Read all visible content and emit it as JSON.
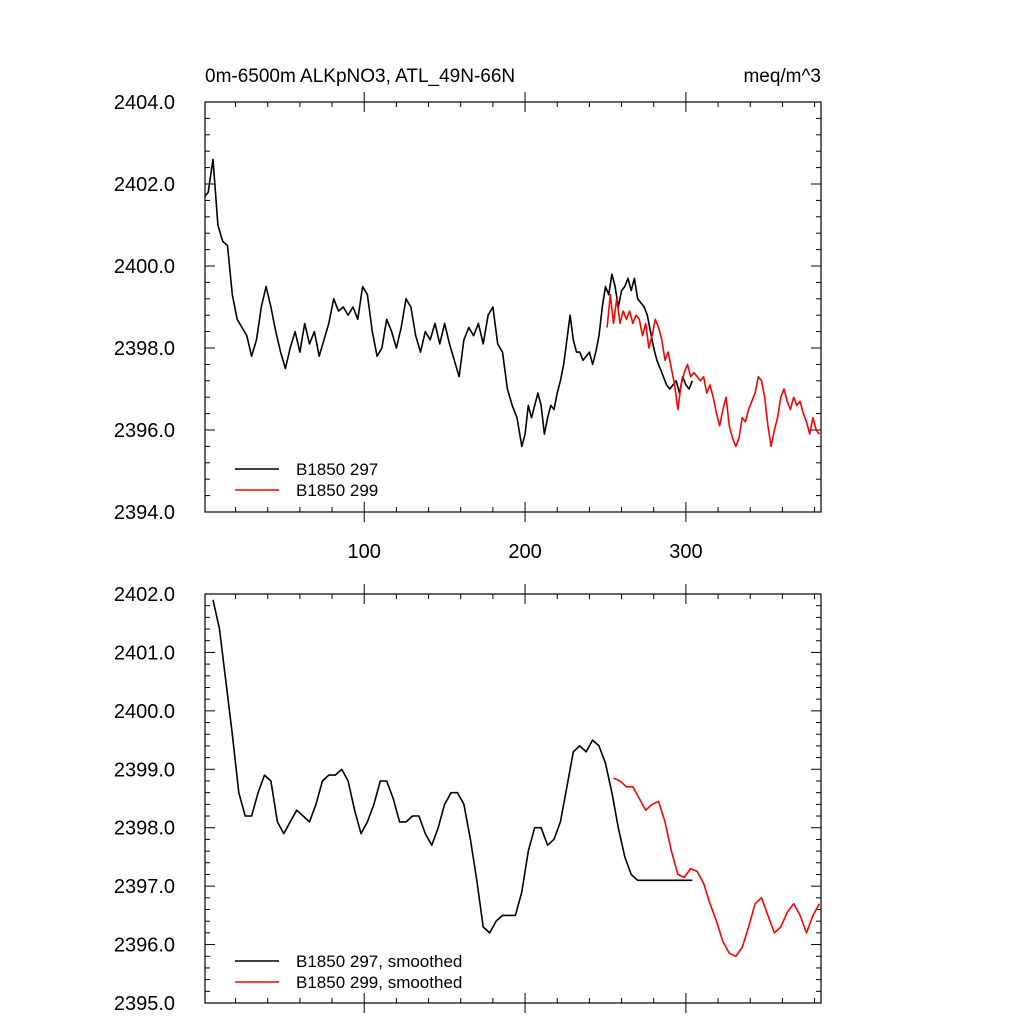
{
  "figure": {
    "title_left": "0m-6500m ALKpNO3, ATL_49N-66N",
    "title_right": "meq/m^3"
  },
  "colors": {
    "series_297": "#000000",
    "series_299": "#ff0000"
  },
  "chart_data": [
    {
      "type": "line",
      "title": "0m-6500m ALKpNO3, ATL_49N-66N",
      "unit": "meq/m^3",
      "xlim": [
        1,
        384
      ],
      "ylim": [
        2394,
        2404
      ],
      "xticks": [
        100,
        200,
        300
      ],
      "yticks": [
        2394,
        2396,
        2398,
        2400,
        2402,
        2404
      ],
      "ytick_labels": [
        "2394.0",
        "2396.0",
        "2398.0",
        "2400.0",
        "2402.0",
        "2404.0"
      ],
      "grid": false,
      "legend": "bottom-left",
      "series": [
        {
          "name": "B1850 297",
          "x": [
            1,
            3,
            6,
            9,
            12,
            15,
            18,
            21,
            24,
            27,
            30,
            33,
            36,
            39,
            42,
            45,
            48,
            51,
            54,
            57,
            60,
            63,
            66,
            69,
            72,
            75,
            78,
            81,
            84,
            87,
            90,
            93,
            96,
            99,
            102,
            105,
            108,
            111,
            114,
            117,
            120,
            123,
            126,
            129,
            132,
            135,
            138,
            141,
            144,
            147,
            150,
            153,
            156,
            159,
            162,
            165,
            168,
            171,
            174,
            177,
            180,
            183,
            186,
            189,
            192,
            195,
            198,
            200,
            202,
            204,
            206,
            208,
            210,
            212,
            214,
            216,
            218,
            220,
            222,
            224,
            226,
            228,
            230,
            232,
            234,
            236,
            238,
            240,
            242,
            244,
            246,
            248,
            250,
            252,
            254,
            256,
            258,
            260,
            262,
            264,
            266,
            268,
            270,
            272,
            274,
            276,
            278,
            280,
            282,
            284,
            286,
            288,
            290,
            292,
            294,
            296,
            298,
            300,
            302,
            304
          ],
          "y": [
            2401.7,
            2401.8,
            2402.6,
            2401.0,
            2400.6,
            2400.5,
            2399.3,
            2398.7,
            2398.5,
            2398.3,
            2397.8,
            2398.2,
            2399.0,
            2399.5,
            2399.0,
            2398.4,
            2397.9,
            2397.5,
            2398.0,
            2398.4,
            2397.9,
            2398.6,
            2398.1,
            2398.4,
            2397.8,
            2398.2,
            2398.6,
            2399.2,
            2398.9,
            2399.0,
            2398.8,
            2399.0,
            2398.7,
            2399.5,
            2399.3,
            2398.4,
            2397.8,
            2398.0,
            2398.7,
            2398.4,
            2398.0,
            2398.5,
            2399.2,
            2399.0,
            2398.3,
            2397.9,
            2398.4,
            2398.2,
            2398.6,
            2398.1,
            2398.6,
            2398.1,
            2397.7,
            2397.3,
            2398.2,
            2398.5,
            2398.3,
            2398.6,
            2398.1,
            2398.8,
            2399.0,
            2398.1,
            2397.9,
            2397.0,
            2396.6,
            2396.3,
            2395.6,
            2395.9,
            2396.6,
            2396.3,
            2396.6,
            2396.9,
            2396.6,
            2395.9,
            2396.3,
            2396.6,
            2396.5,
            2396.9,
            2397.2,
            2397.6,
            2398.2,
            2398.8,
            2398.2,
            2397.9,
            2397.9,
            2397.7,
            2397.8,
            2397.9,
            2397.6,
            2397.9,
            2398.3,
            2399.0,
            2399.5,
            2399.3,
            2399.8,
            2399.5,
            2399.0,
            2399.4,
            2399.5,
            2399.7,
            2399.4,
            2399.7,
            2399.2,
            2399.1,
            2399.0,
            2398.8,
            2398.4,
            2398.0,
            2397.7,
            2397.5,
            2397.3,
            2397.1,
            2397.0,
            2397.1,
            2397.2,
            2396.9,
            2397.3,
            2397.1,
            2397.0,
            2397.2
          ]
        },
        {
          "name": "B1850 299",
          "x": [
            251,
            253,
            255,
            257,
            259,
            261,
            263,
            265,
            267,
            269,
            271,
            273,
            275,
            277,
            279,
            281,
            283,
            285,
            287,
            289,
            291,
            293,
            295,
            297,
            299,
            301,
            303,
            305,
            307,
            309,
            311,
            313,
            315,
            317,
            319,
            321,
            323,
            325,
            327,
            329,
            331,
            333,
            335,
            337,
            339,
            341,
            343,
            345,
            347,
            349,
            351,
            353,
            355,
            357,
            359,
            361,
            363,
            365,
            367,
            369,
            371,
            373,
            375,
            377,
            379,
            381,
            383
          ],
          "y": [
            2398.5,
            2399.3,
            2398.6,
            2399.2,
            2398.6,
            2398.9,
            2398.7,
            2398.9,
            2398.6,
            2398.8,
            2398.7,
            2398.3,
            2398.6,
            2398.0,
            2398.3,
            2398.7,
            2398.5,
            2398.2,
            2397.7,
            2397.9,
            2397.5,
            2397.1,
            2396.5,
            2397.1,
            2397.4,
            2397.6,
            2397.3,
            2397.4,
            2397.3,
            2397.2,
            2397.3,
            2396.9,
            2397.1,
            2396.8,
            2396.4,
            2396.1,
            2396.5,
            2396.8,
            2396.1,
            2395.8,
            2395.6,
            2395.8,
            2396.3,
            2396.2,
            2396.5,
            2396.7,
            2396.9,
            2397.3,
            2397.2,
            2396.8,
            2396.1,
            2395.6,
            2396.0,
            2396.3,
            2396.8,
            2397.0,
            2396.7,
            2396.5,
            2396.8,
            2396.6,
            2396.7,
            2396.4,
            2396.2,
            2395.9,
            2396.3,
            2396.0,
            2395.9
          ]
        }
      ]
    },
    {
      "type": "line",
      "xlim": [
        1,
        384
      ],
      "ylim": [
        2395,
        2402
      ],
      "xticks": [
        100,
        200,
        300
      ],
      "yticks": [
        2395,
        2396,
        2397,
        2398,
        2399,
        2400,
        2401,
        2402
      ],
      "ytick_labels": [
        "2395.0",
        "2396.0",
        "2397.0",
        "2398.0",
        "2399.0",
        "2400.0",
        "2401.0",
        "2402.0"
      ],
      "grid": false,
      "legend": "bottom-left",
      "series": [
        {
          "name": "B1850 297, smoothed",
          "x": [
            6,
            10,
            14,
            18,
            22,
            26,
            30,
            34,
            38,
            42,
            46,
            50,
            54,
            58,
            62,
            66,
            70,
            74,
            78,
            82,
            86,
            90,
            94,
            98,
            102,
            106,
            110,
            114,
            118,
            122,
            126,
            130,
            134,
            138,
            142,
            146,
            150,
            154,
            158,
            162,
            166,
            170,
            174,
            178,
            182,
            186,
            190,
            194,
            198,
            202,
            206,
            210,
            214,
            218,
            222,
            226,
            230,
            234,
            238,
            242,
            246,
            250,
            254,
            258,
            262,
            266,
            270,
            274,
            278,
            282,
            286,
            290,
            294,
            298,
            302,
            304
          ],
          "y": [
            2401.9,
            2401.4,
            2400.5,
            2399.6,
            2398.6,
            2398.2,
            2398.2,
            2398.6,
            2398.9,
            2398.8,
            2398.1,
            2397.9,
            2398.1,
            2398.3,
            2398.2,
            2398.1,
            2398.4,
            2398.8,
            2398.9,
            2398.9,
            2399.0,
            2398.8,
            2398.3,
            2397.9,
            2398.1,
            2398.4,
            2398.8,
            2398.8,
            2398.5,
            2398.1,
            2398.1,
            2398.2,
            2398.2,
            2397.9,
            2397.7,
            2398.0,
            2398.4,
            2398.6,
            2398.6,
            2398.4,
            2397.8,
            2397.1,
            2396.3,
            2396.2,
            2396.4,
            2396.5,
            2396.5,
            2396.5,
            2396.9,
            2397.6,
            2398.0,
            2398.0,
            2397.7,
            2397.8,
            2398.1,
            2398.7,
            2399.3,
            2399.4,
            2399.3,
            2399.5,
            2399.4,
            2399.1,
            2398.6,
            2398.0,
            2397.5,
            2397.2,
            2397.1,
            2397.1,
            2397.1,
            2397.1,
            2397.1,
            2397.1,
            2397.1,
            2397.1,
            2397.1,
            2397.1
          ]
        },
        {
          "name": "B1850 299, smoothed",
          "x": [
            255,
            259,
            263,
            267,
            271,
            275,
            279,
            283,
            287,
            291,
            295,
            299,
            303,
            307,
            311,
            315,
            319,
            323,
            327,
            331,
            335,
            339,
            343,
            347,
            351,
            355,
            359,
            363,
            367,
            371,
            375,
            379,
            383
          ],
          "y": [
            2398.85,
            2398.8,
            2398.7,
            2398.7,
            2398.5,
            2398.3,
            2398.4,
            2398.45,
            2398.1,
            2397.6,
            2397.2,
            2397.15,
            2397.3,
            2397.25,
            2397.05,
            2396.7,
            2396.4,
            2396.05,
            2395.85,
            2395.8,
            2395.95,
            2396.3,
            2396.7,
            2396.8,
            2396.5,
            2396.2,
            2396.3,
            2396.55,
            2396.7,
            2396.5,
            2396.2,
            2396.5,
            2396.7
          ]
        }
      ]
    }
  ]
}
